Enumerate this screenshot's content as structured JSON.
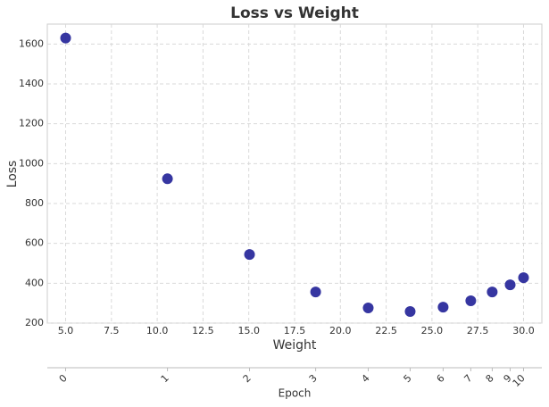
{
  "chart_data": {
    "type": "scatter",
    "title": "Loss vs Weight",
    "x_label": "Weight",
    "y_label": "Loss",
    "series": [
      {
        "name": "Loss",
        "color": "#2b2b9c",
        "x": [
          5.0,
          10.56,
          15.04,
          18.65,
          21.52,
          23.81,
          25.61,
          27.12,
          28.29,
          29.27,
          30.0
        ],
        "values": [
          1630,
          924,
          544,
          356,
          276,
          258,
          280,
          312,
          356,
          392,
          428
        ]
      }
    ],
    "xlim": [
      4,
      31
    ],
    "ylim": [
      200,
      1700
    ],
    "xticks": [
      {
        "value": 5,
        "label": "5.0"
      },
      {
        "value": 7.5,
        "label": "7.5"
      },
      {
        "value": 10,
        "label": "10.0"
      },
      {
        "value": 12.5,
        "label": "12.5"
      },
      {
        "value": 15,
        "label": "15.0"
      },
      {
        "value": 17.5,
        "label": "17.5"
      },
      {
        "value": 20,
        "label": "20.0"
      },
      {
        "value": 22.5,
        "label": "22.5"
      },
      {
        "value": 25,
        "label": "25.0"
      },
      {
        "value": 27.5,
        "label": "27.5"
      },
      {
        "value": 30,
        "label": "30.0"
      }
    ],
    "yticks": [
      200,
      400,
      600,
      800,
      1000,
      1200,
      1400,
      1600
    ],
    "grid": true,
    "secondary_x_axis": {
      "label": "Epoch",
      "ticks": [
        {
          "value": 5.0,
          "label": "0"
        },
        {
          "value": 10.56,
          "label": "1"
        },
        {
          "value": 15.04,
          "label": "2"
        },
        {
          "value": 18.65,
          "label": "3"
        },
        {
          "value": 21.52,
          "label": "4"
        },
        {
          "value": 23.81,
          "label": "5"
        },
        {
          "value": 25.61,
          "label": "6"
        },
        {
          "value": 27.12,
          "label": "7"
        },
        {
          "value": 28.29,
          "label": "8"
        },
        {
          "value": 29.27,
          "label": "9"
        },
        {
          "value": 30.0,
          "label": "10"
        }
      ]
    }
  }
}
